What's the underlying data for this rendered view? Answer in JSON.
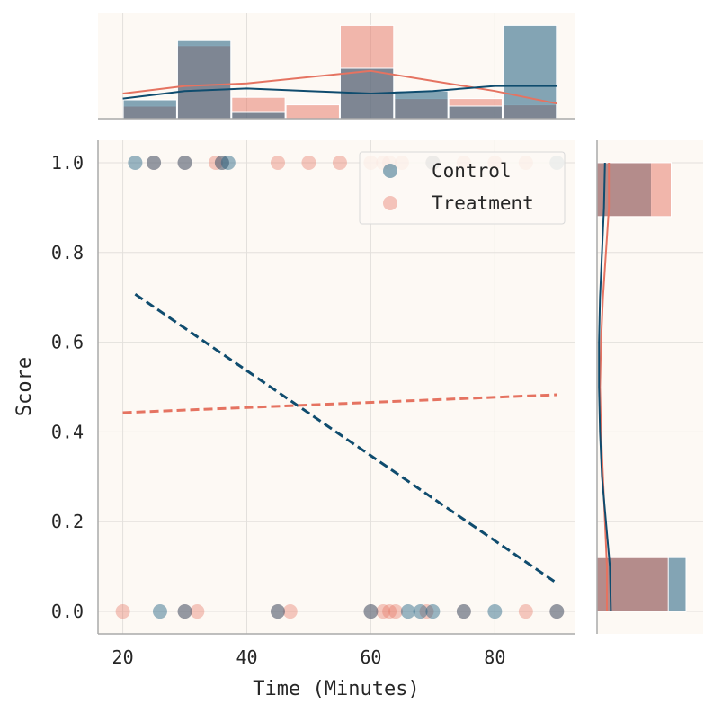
{
  "chart_data": {
    "type": "scatter",
    "xlabel": "Time (Minutes)",
    "ylabel": "Score",
    "xlim": [
      16,
      93
    ],
    "ylim": [
      -0.05,
      1.05
    ],
    "xticks": [
      "20",
      "40",
      "60",
      "80"
    ],
    "yticks": [
      "0.0",
      "0.2",
      "0.4",
      "0.6",
      "0.8",
      "1.0"
    ],
    "grid": true,
    "legend_position": "top-right",
    "colors": {
      "control": "#1f5f80",
      "treatment": "#e57361",
      "background": "#fdf9f4"
    },
    "series": [
      {
        "name": "Control",
        "points": [
          [
            22,
            1
          ],
          [
            25,
            1
          ],
          [
            30,
            1
          ],
          [
            36,
            1
          ],
          [
            37,
            1
          ],
          [
            70,
            1
          ],
          [
            90,
            1
          ],
          [
            26,
            0
          ],
          [
            30,
            0
          ],
          [
            45,
            0
          ],
          [
            60,
            0
          ],
          [
            66,
            0
          ],
          [
            68,
            0
          ],
          [
            70,
            0
          ],
          [
            75,
            0
          ],
          [
            80,
            0
          ],
          [
            90,
            0
          ]
        ],
        "trend": [
          [
            22,
            0.707
          ],
          [
            90,
            0.063
          ]
        ]
      },
      {
        "name": "Treatment",
        "points": [
          [
            25,
            1
          ],
          [
            30,
            1
          ],
          [
            35,
            1
          ],
          [
            36,
            1
          ],
          [
            45,
            1
          ],
          [
            50,
            1
          ],
          [
            55,
            1
          ],
          [
            60,
            1
          ],
          [
            62,
            1
          ],
          [
            63,
            1
          ],
          [
            65,
            1
          ],
          [
            70,
            1
          ],
          [
            75,
            1
          ],
          [
            80,
            1
          ],
          [
            85,
            1
          ],
          [
            20,
            0
          ],
          [
            30,
            0
          ],
          [
            32,
            0
          ],
          [
            45,
            0
          ],
          [
            47,
            0
          ],
          [
            60,
            0
          ],
          [
            62,
            0
          ],
          [
            63,
            0
          ],
          [
            64,
            0
          ],
          [
            69,
            0
          ],
          [
            75,
            0
          ],
          [
            85,
            0
          ],
          [
            90,
            0
          ]
        ],
        "trend": [
          [
            20,
            0.443
          ],
          [
            90,
            0.483
          ]
        ]
      }
    ],
    "x_histogram": {
      "bins": [
        {
          "x0": 20,
          "x1": 28.75,
          "control": 0.15,
          "treatment": 0.1
        },
        {
          "x0": 28.75,
          "x1": 37.5,
          "control": 0.62,
          "treatment": 0.58
        },
        {
          "x0": 37.5,
          "x1": 46.25,
          "control": 0.05,
          "treatment": 0.17
        },
        {
          "x0": 46.25,
          "x1": 55,
          "control": 0.0,
          "treatment": 0.11
        },
        {
          "x0": 55,
          "x1": 63.75,
          "control": 0.4,
          "treatment": 0.74
        },
        {
          "x0": 63.75,
          "x1": 72.5,
          "control": 0.22,
          "treatment": 0.16
        },
        {
          "x0": 72.5,
          "x1": 81.25,
          "control": 0.1,
          "treatment": 0.16
        },
        {
          "x0": 81.25,
          "x1": 90,
          "control": 0.74,
          "treatment": 0.11
        }
      ],
      "kde_control": [
        [
          20,
          0.16
        ],
        [
          30,
          0.22
        ],
        [
          40,
          0.24
        ],
        [
          50,
          0.22
        ],
        [
          60,
          0.2
        ],
        [
          70,
          0.22
        ],
        [
          80,
          0.26
        ],
        [
          90,
          0.26
        ]
      ],
      "kde_treatment": [
        [
          20,
          0.2
        ],
        [
          30,
          0.26
        ],
        [
          40,
          0.28
        ],
        [
          50,
          0.33
        ],
        [
          60,
          0.38
        ],
        [
          70,
          0.3
        ],
        [
          80,
          0.22
        ],
        [
          90,
          0.12
        ]
      ]
    },
    "y_histogram": {
      "bins": [
        {
          "y0": 0.88,
          "y1": 1.0,
          "control": 0.55,
          "treatment": 0.75
        },
        {
          "y0": 0.0,
          "y1": 0.12,
          "control": 0.9,
          "treatment": 0.72
        }
      ],
      "kde_control": [
        [
          0.0,
          0.14
        ],
        [
          0.1,
          0.13
        ],
        [
          0.2,
          0.09
        ],
        [
          0.3,
          0.05
        ],
        [
          0.4,
          0.03
        ],
        [
          0.5,
          0.02
        ],
        [
          0.6,
          0.02
        ],
        [
          0.7,
          0.03
        ],
        [
          0.8,
          0.05
        ],
        [
          0.9,
          0.07
        ],
        [
          1.0,
          0.08
        ]
      ],
      "kde_treatment": [
        [
          0.0,
          0.1
        ],
        [
          0.1,
          0.1
        ],
        [
          0.2,
          0.08
        ],
        [
          0.3,
          0.06
        ],
        [
          0.4,
          0.04
        ],
        [
          0.5,
          0.03
        ],
        [
          0.6,
          0.04
        ],
        [
          0.7,
          0.06
        ],
        [
          0.8,
          0.09
        ],
        [
          0.9,
          0.12
        ],
        [
          1.0,
          0.12
        ]
      ]
    }
  }
}
